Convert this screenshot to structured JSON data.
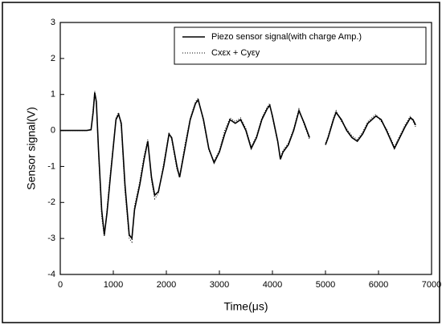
{
  "chart_data": {
    "type": "line",
    "xlabel": "Time(μs)",
    "ylabel": "Sensor signal(V)",
    "x": [
      0,
      500,
      580,
      620,
      650,
      680,
      720,
      780,
      830,
      880,
      950,
      1050,
      1100,
      1150,
      1220,
      1300,
      1350,
      1400,
      1500,
      1580,
      1650,
      1720,
      1780,
      1850,
      1950,
      2050,
      2100,
      2200,
      2250,
      2350,
      2450,
      2550,
      2600,
      2700,
      2800,
      2900,
      3000,
      3100,
      3200,
      3300,
      3400,
      3500,
      3600,
      3700,
      3800,
      3900,
      3950,
      4000,
      4100,
      4150,
      4200,
      4300,
      4400,
      4500,
      4600,
      4700,
      4850,
      5000,
      5050,
      5150,
      5200,
      5300,
      5400,
      5500,
      5600,
      5700,
      5800,
      5950,
      6050,
      6150,
      6300,
      6400,
      6500,
      6600,
      6650,
      6700
    ],
    "series": [
      {
        "name": "Piezo sensor signal(with charge Amp.)",
        "color": "#000000",
        "style": "solid",
        "values": [
          0,
          0,
          0.02,
          0.5,
          1.05,
          0.8,
          -0.5,
          -2.2,
          -2.9,
          -2.3,
          -1.2,
          0.3,
          0.45,
          0.2,
          -1.5,
          -2.9,
          -3.0,
          -2.2,
          -1.5,
          -0.8,
          -0.3,
          -1.3,
          -1.8,
          -1.7,
          -1.0,
          -0.1,
          -0.2,
          -1.0,
          -1.3,
          -0.5,
          0.3,
          0.75,
          0.85,
          0.3,
          -0.5,
          -0.9,
          -0.6,
          -0.1,
          0.3,
          0.2,
          0.3,
          0.0,
          -0.5,
          -0.2,
          0.3,
          0.6,
          0.7,
          0.4,
          -0.3,
          -0.8,
          -0.6,
          -0.4,
          0.0,
          0.55,
          0.2,
          -0.2,
          null,
          -0.4,
          -0.2,
          0.3,
          0.5,
          0.3,
          0.0,
          -0.2,
          -0.3,
          -0.1,
          0.2,
          0.4,
          0.3,
          0.0,
          -0.5,
          -0.2,
          0.1,
          0.35,
          0.3,
          0.15
        ]
      },
      {
        "name": "Cxεx + Cyεy",
        "color": "#000000",
        "style": "dotted",
        "values": [
          0,
          0,
          0.03,
          0.6,
          1.1,
          0.7,
          -0.6,
          -2.4,
          -2.95,
          -2.2,
          -1.1,
          0.35,
          0.5,
          0.1,
          -1.7,
          -3.0,
          -3.1,
          -2.1,
          -1.4,
          -0.7,
          -0.25,
          -1.4,
          -1.9,
          -1.75,
          -0.9,
          -0.05,
          -0.25,
          -1.1,
          -1.25,
          -0.4,
          0.35,
          0.8,
          0.9,
          0.25,
          -0.55,
          -0.85,
          -0.55,
          0.0,
          0.35,
          0.25,
          0.35,
          0.05,
          -0.45,
          -0.15,
          0.35,
          0.65,
          0.75,
          0.35,
          -0.35,
          -0.75,
          -0.55,
          -0.35,
          0.05,
          0.6,
          0.15,
          -0.25,
          null,
          -0.35,
          -0.15,
          0.35,
          0.55,
          0.25,
          0.05,
          -0.15,
          -0.25,
          -0.05,
          0.25,
          0.45,
          0.25,
          0.05,
          -0.45,
          -0.15,
          0.15,
          0.4,
          0.25,
          0.1
        ]
      }
    ],
    "xlim": [
      0,
      7000
    ],
    "xticks": [
      0,
      1000,
      2000,
      3000,
      4000,
      5000,
      6000,
      7000
    ],
    "ylim": [
      -4,
      3
    ],
    "yticks": [
      -4,
      -3,
      -2,
      -1,
      0,
      1,
      2,
      3
    ],
    "legend": "upper right"
  }
}
